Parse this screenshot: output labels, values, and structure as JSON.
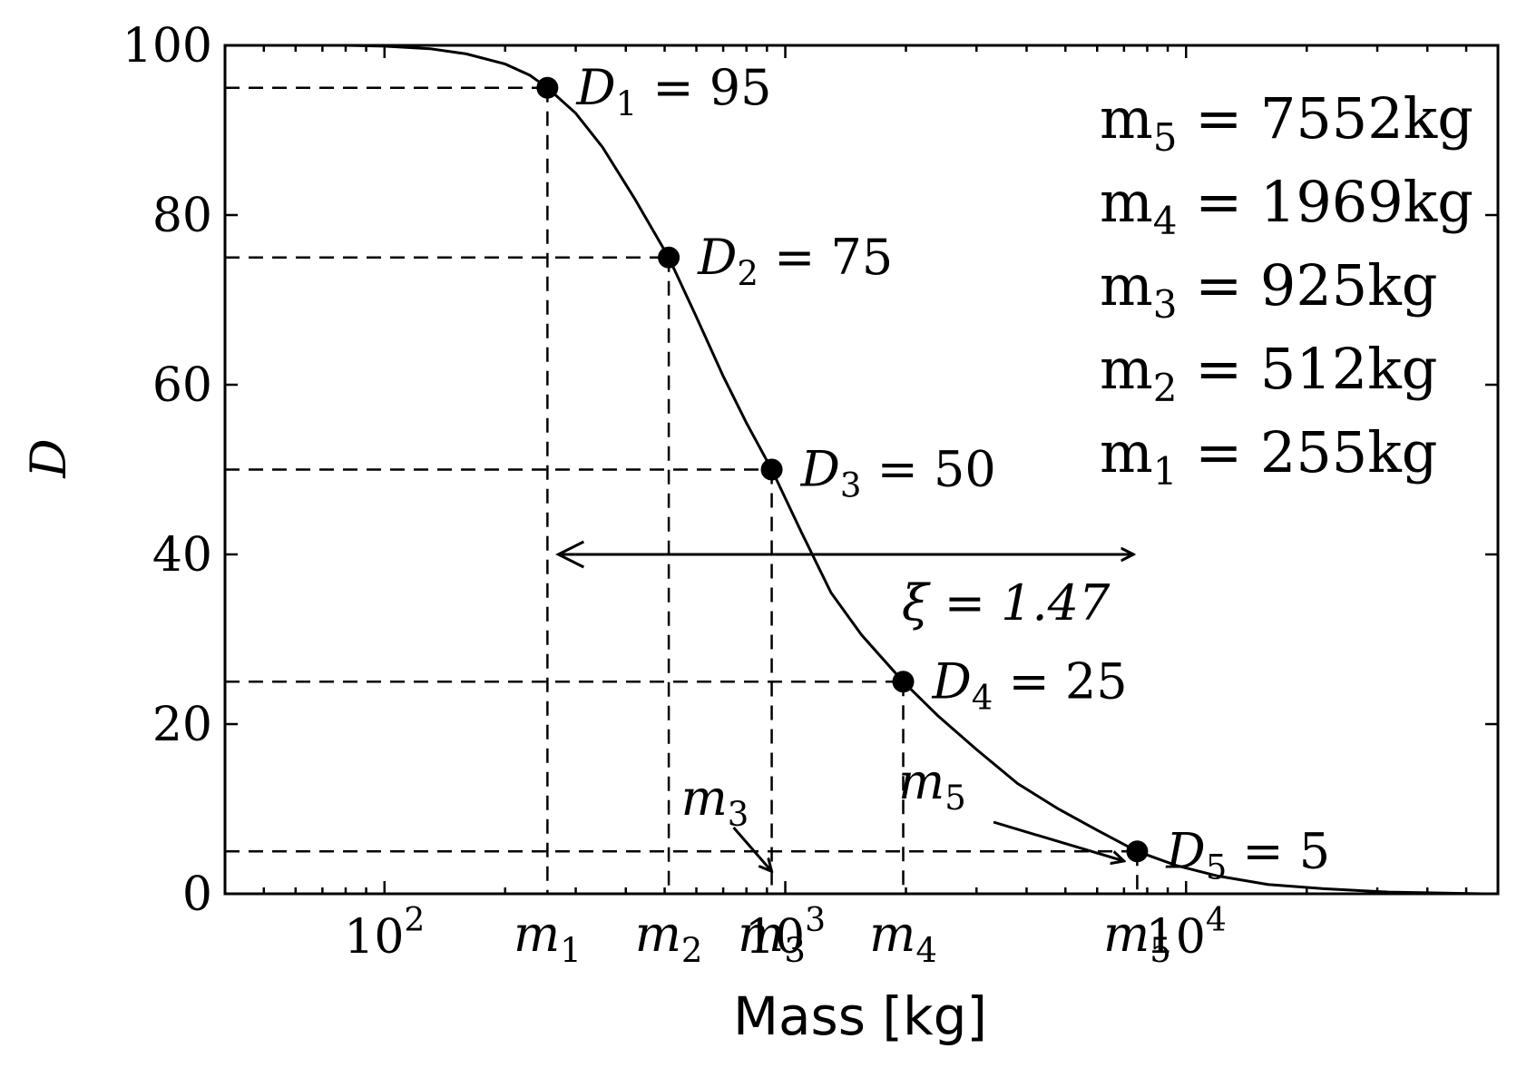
{
  "chart_data": {
    "type": "line",
    "title": "",
    "xlabel": "Mass [kg]",
    "ylabel": "D",
    "xscale": "log",
    "xlim": [
      40,
      60000
    ],
    "ylim": [
      0,
      100
    ],
    "x_major_ticks": [
      {
        "value": 100,
        "base": "10",
        "exp": "2"
      },
      {
        "value": 1000,
        "base": "10",
        "exp": "3"
      },
      {
        "value": 10000,
        "base": "10",
        "exp": "4"
      }
    ],
    "y_ticks": [
      0,
      20,
      40,
      60,
      80,
      100
    ],
    "y_tick_labels": [
      "0",
      "20",
      "40",
      "60",
      "80",
      "100"
    ],
    "curve": {
      "x": [
        40,
        60,
        80,
        100,
        130,
        160,
        200,
        230,
        255,
        300,
        350,
        420,
        512,
        600,
        700,
        800,
        925,
        1100,
        1300,
        1550,
        1969,
        2400,
        3000,
        3800,
        4800,
        6000,
        7552,
        9500,
        12000,
        16000,
        22000,
        32000,
        55000
      ],
      "y": [
        100,
        100,
        100,
        99.9,
        99.6,
        99,
        97.8,
        96.5,
        95,
        92,
        88,
        82,
        75,
        68,
        61,
        55.5,
        50,
        42.5,
        35.5,
        30.5,
        25,
        21,
        17,
        13,
        10,
        7.5,
        5,
        3.3,
        2.1,
        1.1,
        0.6,
        0.2,
        0
      ]
    },
    "points": [
      {
        "sub": "1",
        "mass": 255,
        "D": 95,
        "label": "D_1 = 95",
        "m_label": "m1"
      },
      {
        "sub": "2",
        "mass": 512,
        "D": 75,
        "label": "D_2 = 75",
        "m_label": "m2"
      },
      {
        "sub": "3",
        "mass": 925,
        "D": 50,
        "label": "D_3 = 50",
        "m_label": "m3"
      },
      {
        "sub": "4",
        "mass": 1969,
        "D": 25,
        "label": "D_4 = 25",
        "m_label": "m4"
      },
      {
        "sub": "5",
        "mass": 7552,
        "D": 5,
        "label": "D_5 = 5",
        "m_label": "m5"
      }
    ],
    "masses_legend": [
      {
        "sub": "5",
        "text": "= 7552kg"
      },
      {
        "sub": "4",
        "text": "= 1969kg"
      },
      {
        "sub": "3",
        "text": "= 925kg"
      },
      {
        "sub": "2",
        "text": "= 512kg"
      },
      {
        "sub": "1",
        "text": "= 255kg"
      }
    ],
    "spread_arrow": {
      "x_from": 255,
      "x_to": 7552,
      "y": 40,
      "label": "ξ = 1.47"
    },
    "annotations": [
      {
        "text": "m",
        "sub": "3",
        "arrow_to_mass": 925,
        "arrow_to_D": 2
      },
      {
        "text": "m",
        "sub": "5",
        "arrow_to_mass": 7000,
        "arrow_to_D": 3
      }
    ],
    "grid": false,
    "legend": "top-right"
  }
}
